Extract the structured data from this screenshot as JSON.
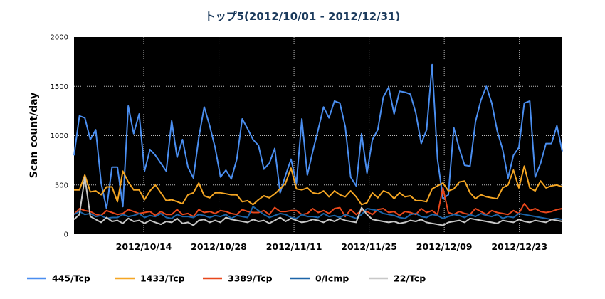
{
  "chart_data": {
    "type": "line",
    "title": "トップ5(2012/10/01  -  2012/12/31)",
    "xlabel": "",
    "ylabel": "Scan count/day",
    "ylim": [
      0,
      2000
    ],
    "yticks": [
      0,
      500,
      1000,
      1500,
      2000
    ],
    "x_start": "2012/10/01",
    "x_end": "2012/12/31",
    "xticks": [
      "2012/10/14",
      "2012/10/28",
      "2012/11/11",
      "2012/11/25",
      "2012/12/09",
      "2012/12/23"
    ],
    "background": "#000000",
    "grid": true,
    "legend_position": "bottom",
    "series": [
      {
        "name": "445/Tcp",
        "color": "#4a8ef0",
        "values": [
          800,
          1200,
          1180,
          960,
          1060,
          520,
          260,
          680,
          680,
          280,
          1300,
          1020,
          1220,
          640,
          860,
          800,
          720,
          640,
          1150,
          780,
          960,
          680,
          570,
          980,
          1290,
          1100,
          880,
          580,
          650,
          560,
          760,
          1170,
          1070,
          960,
          900,
          660,
          720,
          870,
          420,
          600,
          760,
          520,
          1170,
          600,
          840,
          1060,
          1290,
          1180,
          1350,
          1330,
          1090,
          580,
          490,
          1020,
          620,
          960,
          1060,
          1390,
          1490,
          1220,
          1450,
          1440,
          1420,
          1230,
          920,
          1060,
          1720,
          760,
          360,
          400,
          1080,
          870,
          700,
          690,
          1140,
          1360,
          1500,
          1330,
          1050,
          860,
          570,
          800,
          880,
          1330,
          1350,
          580,
          720,
          920,
          920,
          1100,
          840
        ]
      },
      {
        "name": "1433/Tcp",
        "color": "#f5a623",
        "values": [
          450,
          450,
          600,
          430,
          440,
          400,
          480,
          480,
          330,
          640,
          530,
          450,
          450,
          350,
          440,
          500,
          420,
          340,
          350,
          330,
          310,
          400,
          420,
          520,
          390,
          370,
          420,
          420,
          410,
          400,
          400,
          330,
          340,
          300,
          350,
          390,
          370,
          410,
          460,
          520,
          670,
          460,
          450,
          470,
          420,
          410,
          440,
          380,
          440,
          400,
          380,
          440,
          380,
          300,
          320,
          420,
          370,
          440,
          420,
          360,
          420,
          380,
          390,
          340,
          340,
          330,
          460,
          490,
          520,
          440,
          460,
          530,
          540,
          420,
          360,
          400,
          380,
          370,
          360,
          470,
          500,
          650,
          470,
          690,
          470,
          440,
          540,
          470,
          490,
          500,
          480
        ]
      },
      {
        "name": "3389/Tcp",
        "color": "#e8471b",
        "values": [
          200,
          260,
          240,
          230,
          200,
          190,
          240,
          220,
          200,
          210,
          250,
          230,
          210,
          220,
          230,
          190,
          230,
          200,
          200,
          250,
          200,
          210,
          180,
          250,
          220,
          230,
          210,
          240,
          230,
          210,
          200,
          250,
          230,
          220,
          220,
          240,
          200,
          270,
          230,
          230,
          240,
          240,
          200,
          210,
          260,
          220,
          240,
          210,
          260,
          270,
          180,
          250,
          200,
          240,
          230,
          200,
          250,
          260,
          220,
          230,
          190,
          230,
          220,
          200,
          260,
          220,
          240,
          200,
          470,
          220,
          200,
          230,
          210,
          200,
          260,
          230,
          200,
          240,
          220,
          210,
          200,
          240,
          210,
          310,
          240,
          260,
          230,
          220,
          230,
          250,
          260
        ]
      },
      {
        "name": "0/Icmp",
        "color": "#1c64a8",
        "values": [
          200,
          230,
          200,
          210,
          180,
          190,
          160,
          170,
          170,
          200,
          180,
          190,
          210,
          170,
          190,
          180,
          210,
          170,
          160,
          200,
          180,
          180,
          170,
          200,
          190,
          170,
          190,
          180,
          200,
          160,
          190,
          180,
          170,
          280,
          240,
          200,
          170,
          190,
          210,
          200,
          170,
          160,
          200,
          180,
          180,
          170,
          210,
          180,
          190,
          170,
          200,
          180,
          160,
          200,
          260,
          250,
          240,
          210,
          200,
          190,
          170,
          160,
          200,
          210,
          180,
          170,
          200,
          190,
          160,
          180,
          200,
          190,
          170,
          200,
          180,
          210,
          190,
          180,
          200,
          160,
          180,
          170,
          210,
          200,
          190,
          180,
          170,
          160,
          150,
          160,
          150
        ]
      },
      {
        "name": "22/Tcp",
        "color": "#c8c8c8",
        "values": [
          150,
          200,
          580,
          180,
          150,
          120,
          170,
          130,
          140,
          110,
          160,
          130,
          140,
          110,
          140,
          120,
          100,
          130,
          120,
          160,
          110,
          120,
          90,
          140,
          150,
          120,
          140,
          120,
          170,
          150,
          140,
          130,
          120,
          150,
          130,
          140,
          110,
          140,
          170,
          130,
          160,
          140,
          120,
          130,
          150,
          140,
          120,
          150,
          130,
          160,
          140,
          130,
          120,
          270,
          200,
          150,
          140,
          130,
          120,
          130,
          110,
          120,
          140,
          130,
          150,
          120,
          110,
          100,
          90,
          120,
          130,
          140,
          120,
          160,
          150,
          140,
          130,
          120,
          110,
          140,
          130,
          120,
          150,
          130,
          120,
          140,
          130,
          120,
          150,
          140,
          130
        ]
      }
    ]
  }
}
